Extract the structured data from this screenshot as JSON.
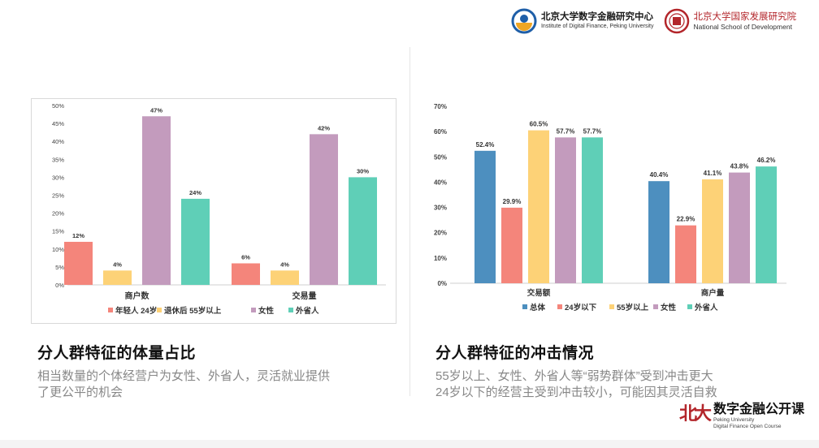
{
  "header": {
    "pku_digital_finance": {
      "cn": "北京大学数字金融研究中心",
      "en": "Institute of Digital Finance, Peking University"
    },
    "nsd": {
      "cn": "北京大学国家发展研究院",
      "en": "National School of Development"
    }
  },
  "left": {
    "title": "分人群特征的体量占比",
    "body_line1": "相当数量的个体经营户为女性、外省人，灵活就业提供",
    "body_line2": "了更公平的机会"
  },
  "right": {
    "title": "分人群特征的冲击情况",
    "body_line1": "55岁以上、女性、外省人等“弱势群体”受到冲击更大",
    "body_line2": "24岁以下的经营主受到冲击较小，可能因其灵活自救"
  },
  "footer": {
    "course_cn": "数字金融公开课",
    "course_en1": "Peking University",
    "course_en2": "Digital Finance Open Course",
    "logo_glyph": "北大"
  },
  "colors": {
    "salmon": "#f4857b",
    "yellow": "#fdd277",
    "mauve": "#c39bbd",
    "teal": "#5fcfb7",
    "blue": "#4d8fbf"
  },
  "chart_data": [
    {
      "type": "bar",
      "categories": [
        "商户数",
        "交易量"
      ],
      "series": [
        {
          "name": "年轻人 24岁",
          "values": [
            12,
            6
          ],
          "labels": [
            "12%",
            "6%"
          ],
          "color": "#f4857b"
        },
        {
          "name": "退休后 55岁以上",
          "values": [
            4,
            4
          ],
          "labels": [
            "4%",
            "4%"
          ],
          "color": "#fdd277"
        },
        {
          "name": "女性",
          "values": [
            47,
            42
          ],
          "labels": [
            "47%",
            "42%"
          ],
          "color": "#c39bbd"
        },
        {
          "name": "外省人",
          "values": [
            24,
            30
          ],
          "labels": [
            "24%",
            "30%"
          ],
          "color": "#5fcfb7"
        }
      ],
      "ylim": [
        0,
        50
      ],
      "yticks": [
        "0%",
        "5%",
        "10%",
        "15%",
        "20%",
        "25%",
        "30%",
        "35%",
        "40%",
        "45%",
        "50%"
      ],
      "legend": "bottom",
      "grid": false
    },
    {
      "type": "bar",
      "categories": [
        "交易额",
        "商户量"
      ],
      "series": [
        {
          "name": "总体",
          "values": [
            52.4,
            40.4
          ],
          "labels": [
            "52.4%",
            "40.4%"
          ],
          "color": "#4d8fbf"
        },
        {
          "name": "24岁以下",
          "values": [
            29.9,
            22.9
          ],
          "labels": [
            "29.9%",
            "22.9%"
          ],
          "color": "#f4857b"
        },
        {
          "name": "55岁以上",
          "values": [
            60.5,
            41.1
          ],
          "labels": [
            "60.5%",
            "41.1%"
          ],
          "color": "#fdd277"
        },
        {
          "name": "女性",
          "values": [
            57.7,
            43.8
          ],
          "labels": [
            "57.7%",
            "43.8%"
          ],
          "color": "#c39bbd"
        },
        {
          "name": "外省人",
          "values": [
            57.7,
            46.2
          ],
          "labels": [
            "57.7%",
            "46.2%"
          ],
          "color": "#5fcfb7"
        }
      ],
      "ylim": [
        0,
        70
      ],
      "yticks": [
        "0%",
        "10%",
        "20%",
        "30%",
        "40%",
        "50%",
        "60%",
        "70%"
      ],
      "legend": "bottom",
      "grid": false
    }
  ]
}
